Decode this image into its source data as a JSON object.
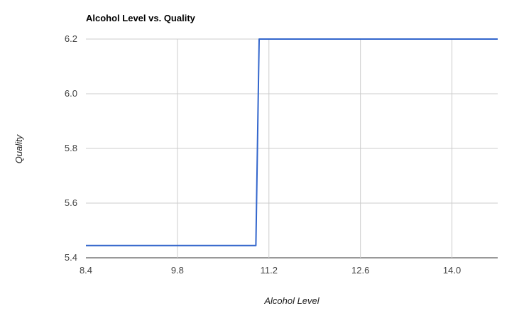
{
  "chart_data": {
    "type": "line",
    "title": "Alcohol Level vs. Quality",
    "xlabel": "Alcohol Level",
    "ylabel": "Quality",
    "xlim": [
      8.4,
      14.7
    ],
    "ylim": [
      5.4,
      6.2
    ],
    "x_ticks": [
      "8.4",
      "9.8",
      "11.2",
      "12.6",
      "14.0"
    ],
    "y_ticks": [
      "5.4",
      "5.6",
      "5.8",
      "6.0",
      "6.2"
    ],
    "grid": true,
    "legend": "none",
    "series": [
      {
        "color": "#3366cc",
        "points": [
          {
            "x": 8.4,
            "y": 5.445
          },
          {
            "x": 11.0,
            "y": 5.445
          },
          {
            "x": 11.05,
            "y": 6.2
          },
          {
            "x": 14.7,
            "y": 6.2
          }
        ]
      }
    ]
  }
}
